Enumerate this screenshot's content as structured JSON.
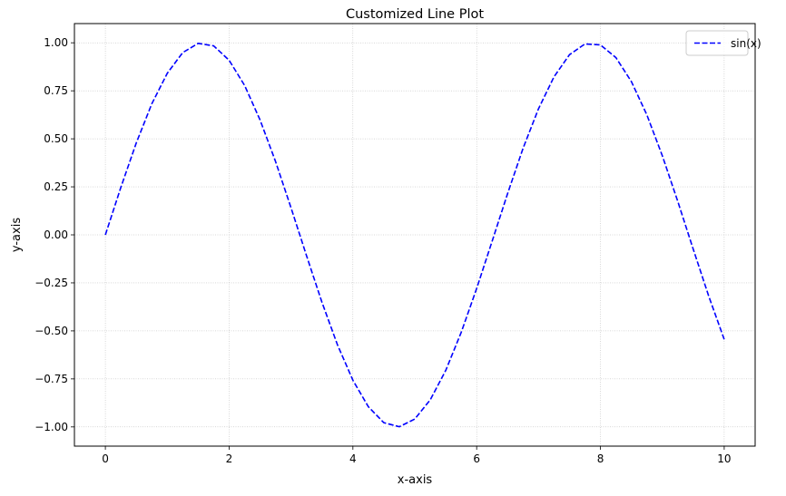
{
  "chart_data": {
    "type": "line",
    "title": "Customized Line Plot",
    "xlabel": "x-axis",
    "ylabel": "y-axis",
    "xlim": [
      -0.5,
      10.5
    ],
    "ylim": [
      -1.1,
      1.1
    ],
    "x_ticks": [
      0,
      2,
      4,
      6,
      8,
      10
    ],
    "y_ticks": [
      1.0,
      0.75,
      0.5,
      0.25,
      0.0,
      -0.25,
      -0.5,
      -0.75,
      -1.0
    ],
    "x_tick_labels": [
      "0",
      "2",
      "4",
      "6",
      "8",
      "10"
    ],
    "y_tick_labels": [
      "1.00",
      "0.75",
      "0.50",
      "0.25",
      "0.00",
      "−0.25",
      "−0.50",
      "−0.75",
      "−1.00"
    ],
    "grid": true,
    "legend_position": "top-right",
    "series": [
      {
        "name": "sin(x)",
        "color": "#0000ff",
        "line_style": "dashed",
        "x": [
          0,
          0.25,
          0.5,
          0.75,
          1,
          1.25,
          1.5,
          1.75,
          2,
          2.25,
          2.5,
          2.75,
          3,
          3.25,
          3.5,
          3.75,
          4,
          4.25,
          4.5,
          4.75,
          5,
          5.25,
          5.5,
          5.75,
          6,
          6.25,
          6.5,
          6.75,
          7,
          7.25,
          7.5,
          7.75,
          8,
          8.25,
          8.5,
          8.75,
          9,
          9.25,
          9.5,
          9.75,
          10
        ],
        "y": [
          0.0,
          0.247,
          0.479,
          0.682,
          0.841,
          0.949,
          0.997,
          0.984,
          0.909,
          0.778,
          0.598,
          0.382,
          0.141,
          -0.108,
          -0.351,
          -0.572,
          -0.757,
          -0.895,
          -0.978,
          -0.999,
          -0.959,
          -0.859,
          -0.706,
          -0.508,
          -0.279,
          -0.033,
          0.215,
          0.451,
          0.657,
          0.823,
          0.938,
          0.994,
          0.989,
          0.923,
          0.798,
          0.625,
          0.412,
          0.174,
          -0.075,
          -0.319,
          -0.544
        ]
      }
    ]
  }
}
